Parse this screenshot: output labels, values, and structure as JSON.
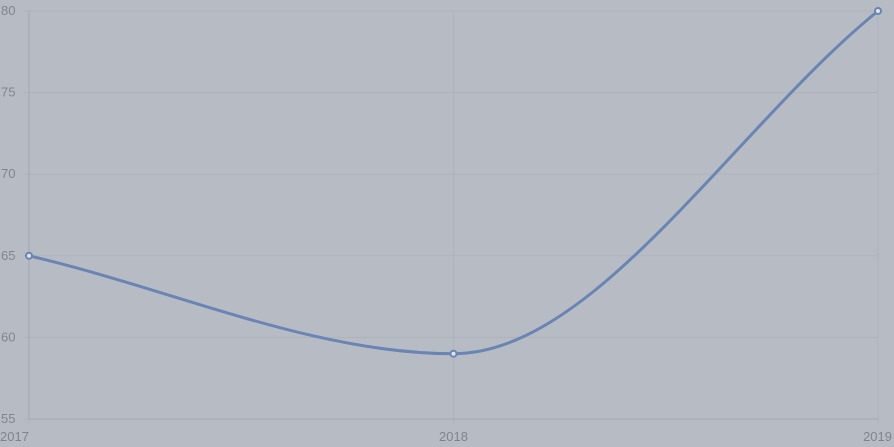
{
  "chart_data": {
    "type": "line",
    "title": "",
    "xlabel": "",
    "ylabel": "",
    "categories": [
      "2017",
      "2018",
      "2019"
    ],
    "series": [
      {
        "values": [
          65,
          59,
          80
        ],
        "color": "#6a84b3"
      }
    ],
    "ylim": [
      55,
      80
    ],
    "yticks": [
      55,
      60,
      65,
      70,
      75,
      80
    ],
    "grid": true,
    "legend": "none",
    "curve": "smooth"
  },
  "colors": {
    "background": "#b7bcc4",
    "grid": "#aeb3bb",
    "tick_text": "#7f858f",
    "series": "#6a84b3",
    "point_fill": "#dfe3ea"
  }
}
